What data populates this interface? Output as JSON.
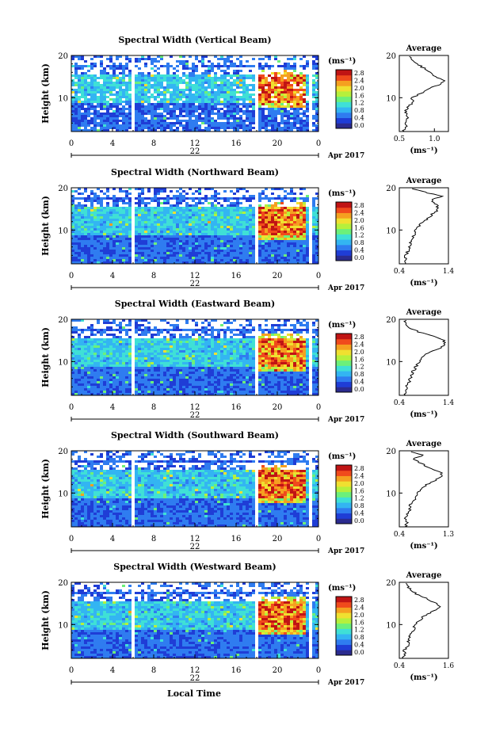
{
  "chart_data": [
    {
      "type": "heatmap",
      "title": "Spectral Width (Vertical Beam)",
      "ylabel": "Height (km)",
      "xlim": [
        0,
        24
      ],
      "ylim": [
        2,
        20
      ],
      "x_ticks": [
        "0",
        "4",
        "8",
        "12",
        "16",
        "20",
        "0"
      ],
      "y_ticks": [
        "10",
        "20"
      ],
      "date_label": "22",
      "month_label": "Apr 2017",
      "colorbar": {
        "unit": "(ms⁻¹)",
        "ticks": [
          "0.0",
          "0.4",
          "0.8",
          "1.2",
          "1.6",
          "2.0",
          "2.4",
          "2.8"
        ]
      },
      "average": {
        "title": "Average",
        "xlabel": "(ms⁻¹)",
        "x_ticks": [
          "0.5",
          "1.0"
        ],
        "xlim": [
          0.5,
          1.2
        ],
        "profile": [
          [
            0.55,
            2
          ],
          [
            0.6,
            3
          ],
          [
            0.58,
            4
          ],
          [
            0.62,
            5
          ],
          [
            0.6,
            6
          ],
          [
            0.58,
            7
          ],
          [
            0.64,
            8
          ],
          [
            0.7,
            9
          ],
          [
            0.68,
            10
          ],
          [
            0.8,
            11
          ],
          [
            0.9,
            12
          ],
          [
            1.05,
            13
          ],
          [
            1.15,
            14
          ],
          [
            1.0,
            15
          ],
          [
            0.95,
            16
          ],
          [
            0.85,
            17
          ],
          [
            0.75,
            18
          ],
          [
            0.68,
            19
          ],
          [
            0.62,
            20
          ]
        ]
      }
    },
    {
      "type": "heatmap",
      "title": "Spectral Width (Northward Beam)",
      "ylabel": "Height (km)",
      "xlim": [
        0,
        24
      ],
      "ylim": [
        2,
        20
      ],
      "x_ticks": [
        "0",
        "4",
        "8",
        "12",
        "16",
        "20",
        "0"
      ],
      "y_ticks": [
        "10",
        "20"
      ],
      "date_label": "22",
      "month_label": "Apr 2017",
      "colorbar": {
        "unit": "(ms⁻¹)",
        "ticks": [
          "0.0",
          "0.4",
          "0.8",
          "1.2",
          "1.6",
          "2.0",
          "2.4",
          "2.8"
        ]
      },
      "average": {
        "title": "Average",
        "xlabel": "(ms⁻¹)",
        "x_ticks": [
          "0.4",
          "1.4"
        ],
        "xlim": [
          0.4,
          1.4
        ],
        "profile": [
          [
            0.5,
            2
          ],
          [
            0.55,
            3
          ],
          [
            0.52,
            4
          ],
          [
            0.58,
            5
          ],
          [
            0.6,
            6
          ],
          [
            0.62,
            7
          ],
          [
            0.65,
            8
          ],
          [
            0.7,
            9
          ],
          [
            0.72,
            10
          ],
          [
            0.8,
            11
          ],
          [
            0.9,
            12
          ],
          [
            1.0,
            13
          ],
          [
            1.1,
            14
          ],
          [
            1.2,
            15
          ],
          [
            1.15,
            16
          ],
          [
            1.05,
            17
          ],
          [
            1.25,
            18
          ],
          [
            0.9,
            19
          ],
          [
            0.6,
            20
          ]
        ]
      }
    },
    {
      "type": "heatmap",
      "title": "Spectral Width (Eastward Beam)",
      "ylabel": "Height (km)",
      "xlim": [
        0,
        24
      ],
      "ylim": [
        2,
        20
      ],
      "x_ticks": [
        "0",
        "4",
        "8",
        "12",
        "16",
        "20",
        "0"
      ],
      "y_ticks": [
        "10",
        "20"
      ],
      "date_label": "22",
      "month_label": "Apr 2017",
      "colorbar": {
        "unit": "(ms⁻¹)",
        "ticks": [
          "0.0",
          "0.4",
          "0.8",
          "1.2",
          "1.6",
          "2.0",
          "2.4",
          "2.8"
        ]
      },
      "average": {
        "title": "Average",
        "xlabel": "(ms⁻¹)",
        "x_ticks": [
          "0.4",
          "1.4"
        ],
        "xlim": [
          0.4,
          1.4
        ],
        "profile": [
          [
            0.5,
            2
          ],
          [
            0.52,
            3
          ],
          [
            0.55,
            4
          ],
          [
            0.6,
            5
          ],
          [
            0.62,
            6
          ],
          [
            0.65,
            7
          ],
          [
            0.7,
            8
          ],
          [
            0.75,
            9
          ],
          [
            0.8,
            10
          ],
          [
            0.85,
            11
          ],
          [
            1.0,
            12
          ],
          [
            1.2,
            13
          ],
          [
            1.35,
            14
          ],
          [
            1.3,
            15
          ],
          [
            1.1,
            16
          ],
          [
            0.8,
            17
          ],
          [
            0.6,
            18
          ],
          [
            0.55,
            19
          ],
          [
            0.5,
            20
          ]
        ]
      }
    },
    {
      "type": "heatmap",
      "title": "Spectral Width (Southward Beam)",
      "ylabel": "Height (km)",
      "xlim": [
        0,
        24
      ],
      "ylim": [
        2,
        20
      ],
      "x_ticks": [
        "0",
        "4",
        "8",
        "12",
        "16",
        "20",
        "0"
      ],
      "y_ticks": [
        "10",
        "20"
      ],
      "date_label": "22",
      "month_label": "Apr 2017",
      "colorbar": {
        "unit": "(ms⁻¹)",
        "ticks": [
          "0.0",
          "0.4",
          "0.8",
          "1.2",
          "1.6",
          "2.0",
          "2.4",
          "2.8"
        ]
      },
      "average": {
        "title": "Average",
        "xlabel": "(ms⁻¹)",
        "x_ticks": [
          "0.4",
          "1.3"
        ],
        "xlim": [
          0.4,
          1.3
        ],
        "profile": [
          [
            0.5,
            2
          ],
          [
            0.55,
            3
          ],
          [
            0.5,
            4
          ],
          [
            0.55,
            5
          ],
          [
            0.6,
            6
          ],
          [
            0.58,
            7
          ],
          [
            0.65,
            8
          ],
          [
            0.7,
            9
          ],
          [
            0.75,
            10
          ],
          [
            0.8,
            11
          ],
          [
            0.9,
            12
          ],
          [
            1.05,
            13
          ],
          [
            1.2,
            14
          ],
          [
            1.15,
            15
          ],
          [
            0.95,
            16
          ],
          [
            0.8,
            17
          ],
          [
            0.65,
            18
          ],
          [
            0.85,
            19
          ],
          [
            0.55,
            20
          ]
        ]
      }
    },
    {
      "type": "heatmap",
      "title": "Spectral Width (Westward Beam)",
      "ylabel": "Height (km)",
      "xlim": [
        0,
        24
      ],
      "ylim": [
        2,
        20
      ],
      "x_ticks": [
        "0",
        "4",
        "8",
        "12",
        "16",
        "20",
        "0"
      ],
      "y_ticks": [
        "10",
        "20"
      ],
      "date_label": "22",
      "month_label": "Apr 2017",
      "colorbar": {
        "unit": "(ms⁻¹)",
        "ticks": [
          "0.0",
          "0.4",
          "0.8",
          "1.2",
          "1.6",
          "2.0",
          "2.4",
          "2.8"
        ]
      },
      "average": {
        "title": "Average",
        "xlabel": "(ms⁻¹)",
        "x_ticks": [
          "0.4",
          "1.6"
        ],
        "xlim": [
          0.4,
          1.6
        ],
        "profile": [
          [
            0.5,
            2
          ],
          [
            0.55,
            3
          ],
          [
            0.52,
            4
          ],
          [
            0.6,
            5
          ],
          [
            0.62,
            6
          ],
          [
            0.65,
            7
          ],
          [
            0.7,
            8
          ],
          [
            0.75,
            9
          ],
          [
            0.8,
            10
          ],
          [
            0.9,
            11
          ],
          [
            1.0,
            12
          ],
          [
            1.2,
            13
          ],
          [
            1.4,
            14
          ],
          [
            1.3,
            15
          ],
          [
            1.1,
            16
          ],
          [
            0.85,
            17
          ],
          [
            0.7,
            18
          ],
          [
            0.6,
            19
          ],
          [
            0.55,
            20
          ]
        ]
      }
    }
  ],
  "footer": {
    "xlabel": "Local Time"
  },
  "colors": {
    "scale": [
      "#2b2b8f",
      "#1f3dd6",
      "#2f7cf0",
      "#33b5f2",
      "#3fe0d6",
      "#6cf07a",
      "#b6f03c",
      "#f0e030",
      "#f5a020",
      "#f04a1c",
      "#c01414"
    ]
  }
}
